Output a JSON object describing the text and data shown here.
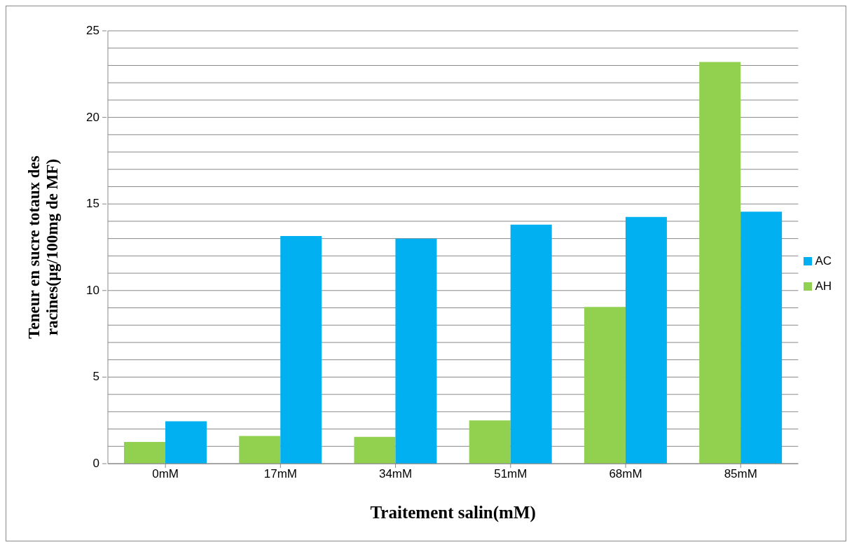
{
  "chart_data": {
    "type": "bar",
    "xlabel": "Traitement salin(mM)",
    "ylabel": "Teneur  en sucre totaux des\nracines(µg/100mg de MF)",
    "categories": [
      "0mM",
      "17mM",
      "34mM",
      "51mM",
      "68mM",
      "85mM"
    ],
    "series": [
      {
        "name": "AH",
        "color": "#92d050",
        "values": [
          1.25,
          1.6,
          1.55,
          2.5,
          9.05,
          23.2
        ]
      },
      {
        "name": "AC",
        "color": "#00b0f0",
        "values": [
          2.45,
          13.15,
          13.0,
          13.8,
          14.25,
          14.55
        ]
      }
    ],
    "ylim": [
      0,
      25
    ],
    "yticks": [
      0,
      {
        "value": 1,
        "label": null
      },
      {
        "value": 2,
        "label": null
      },
      {
        "value": 3,
        "label": null
      },
      {
        "value": 4,
        "label": null
      },
      5,
      {
        "value": 6,
        "label": null
      },
      {
        "value": 7,
        "label": null
      },
      {
        "value": 8,
        "label": null
      },
      {
        "value": 9,
        "label": null
      },
      10,
      {
        "value": 11,
        "label": null
      },
      {
        "value": 12,
        "label": null
      },
      {
        "value": 13,
        "label": null
      },
      {
        "value": 14,
        "label": null
      },
      15,
      {
        "value": 16,
        "label": null
      },
      {
        "value": 17,
        "label": null
      },
      {
        "value": 18,
        "label": null
      },
      {
        "value": 19,
        "label": null
      },
      20,
      {
        "value": 21,
        "label": null
      },
      {
        "value": 22,
        "label": null
      },
      {
        "value": 23,
        "label": null
      },
      {
        "value": 24,
        "label": null
      },
      25
    ],
    "grid": "y",
    "legend": "right"
  }
}
